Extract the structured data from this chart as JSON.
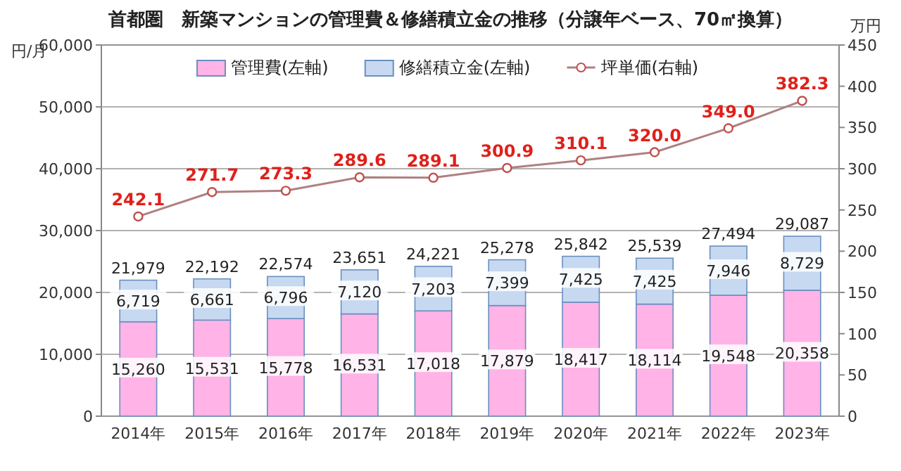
{
  "chart_data": {
    "type": "bar",
    "stacked": true,
    "title": "首都圏　新築マンションの管理費＆修繕積立金の推移（分譲年ベース、70㎡換算）",
    "ylabel": "円/月",
    "y2label": "万円",
    "categories": [
      "2014年",
      "2015年",
      "2016年",
      "2017年",
      "2018年",
      "2019年",
      "2020年",
      "2021年",
      "2022年",
      "2023年"
    ],
    "series": [
      {
        "name": "管理費(左軸)",
        "color": "#ffb3e6",
        "values": [
          15260,
          15531,
          15778,
          16531,
          17018,
          17879,
          18417,
          18114,
          19548,
          20358
        ],
        "value_labels": [
          "15,260",
          "15,531",
          "15,778",
          "16,531",
          "17,018",
          "17,879",
          "18,417",
          "18,114",
          "19,548",
          "20,358"
        ]
      },
      {
        "name": "修繕積立金(左軸)",
        "color": "#c6d9f1",
        "values": [
          6719,
          6661,
          6796,
          7120,
          7203,
          7399,
          7425,
          7425,
          7946,
          8729
        ],
        "value_labels": [
          "6,719",
          "6,661",
          "6,796",
          "7,120",
          "7,203",
          "7,399",
          "7,425",
          "7,425",
          "7,946",
          "8,729"
        ]
      },
      {
        "name": "坪単価(右軸)",
        "type": "line",
        "axis": "y2",
        "color": "#c0504d",
        "marker": "circle",
        "values": [
          242.1,
          271.7,
          273.3,
          289.6,
          289.1,
          300.9,
          310.1,
          320.0,
          349.0,
          382.3
        ],
        "value_labels": [
          "242.1",
          "271.7",
          "273.3",
          "289.6",
          "289.1",
          "300.9",
          "310.1",
          "320.0",
          "349.0",
          "382.3"
        ]
      }
    ],
    "totals": [
      "21,979",
      "22,192",
      "22,574",
      "23,651",
      "24,221",
      "25,278",
      "25,842",
      "25,539",
      "27,494",
      "29,087"
    ],
    "ylim": [
      0,
      60000
    ],
    "yticks": [
      {
        "value": 0,
        "label": "0"
      },
      {
        "value": 10000,
        "label": "10,000"
      },
      {
        "value": 20000,
        "label": "20,000"
      },
      {
        "value": 30000,
        "label": "30,000"
      },
      {
        "value": 40000,
        "label": "40,000"
      },
      {
        "value": 50000,
        "label": "50,000"
      },
      {
        "value": 60000,
        "label": "60,000"
      }
    ],
    "y2lim": [
      0,
      450
    ],
    "y2ticks": [
      0,
      50,
      100,
      150,
      200,
      250,
      300,
      350,
      400,
      450
    ],
    "grid": "y",
    "legend": "top"
  }
}
